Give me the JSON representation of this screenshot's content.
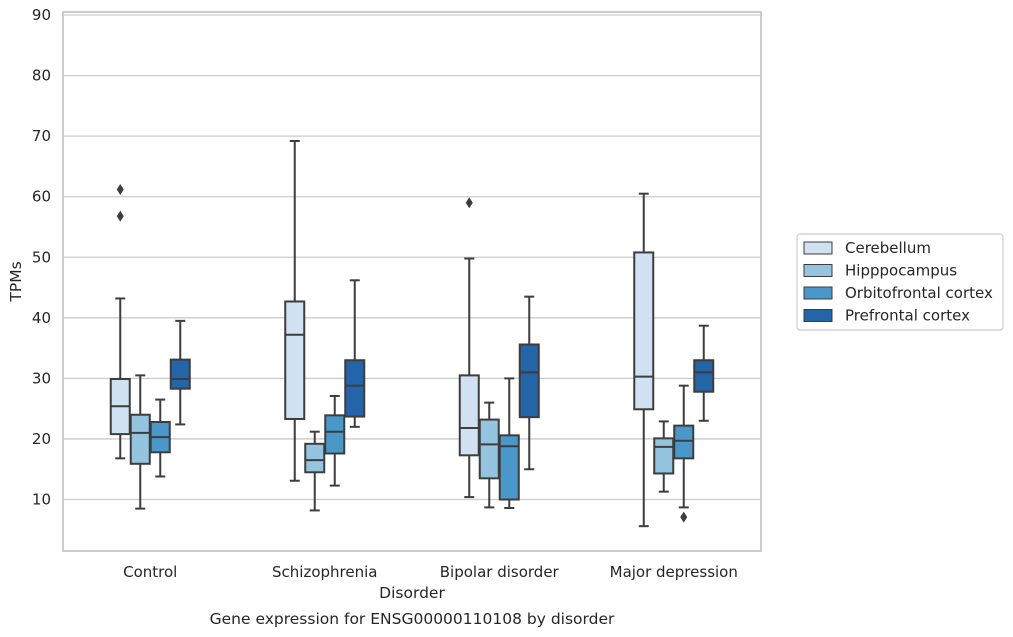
{
  "chart_data": {
    "type": "box",
    "caption": "Gene expression for ENSG00000110108 by disorder",
    "xlabel": "Disorder",
    "ylabel": "TPMs",
    "ylim": [
      1.5,
      90.5
    ],
    "yticks": [
      10,
      20,
      30,
      40,
      50,
      60,
      70,
      80,
      90
    ],
    "grid": "horizontal",
    "legend_position": "right",
    "categories": [
      "Control",
      "Schizophrenia",
      "Bipolar disorder",
      "Major depression"
    ],
    "series": [
      {
        "name": "Cerebellum",
        "color": "#d0e1f2",
        "boxes": [
          {
            "whislo": 16.8,
            "q1": 20.8,
            "med": 25.4,
            "q3": 29.9,
            "whishi": 43.2,
            "fliers": [
              56.8,
              61.2
            ]
          },
          {
            "whislo": 13.1,
            "q1": 23.3,
            "med": 37.2,
            "q3": 42.7,
            "whishi": 69.2,
            "fliers": []
          },
          {
            "whislo": 10.4,
            "q1": 17.3,
            "med": 21.8,
            "q3": 30.5,
            "whishi": 49.8,
            "fliers": [
              59.0
            ]
          },
          {
            "whislo": 5.6,
            "q1": 24.9,
            "med": 30.3,
            "q3": 50.8,
            "whishi": 60.5,
            "fliers": []
          }
        ]
      },
      {
        "name": "Hipppocampus",
        "color": "#94c4df",
        "boxes": [
          {
            "whislo": 8.5,
            "q1": 15.9,
            "med": 21.0,
            "q3": 24.0,
            "whishi": 30.5,
            "fliers": []
          },
          {
            "whislo": 8.2,
            "q1": 14.5,
            "med": 16.5,
            "q3": 19.2,
            "whishi": 21.2,
            "fliers": []
          },
          {
            "whislo": 8.7,
            "q1": 13.5,
            "med": 19.1,
            "q3": 23.2,
            "whishi": 26.0,
            "fliers": []
          },
          {
            "whislo": 11.3,
            "q1": 14.3,
            "med": 18.7,
            "q3": 20.1,
            "whishi": 22.9,
            "fliers": []
          }
        ]
      },
      {
        "name": "Orbitofrontal cortex",
        "color": "#4a98c9",
        "boxes": [
          {
            "whislo": 13.8,
            "q1": 17.8,
            "med": 20.3,
            "q3": 22.8,
            "whishi": 26.5,
            "fliers": []
          },
          {
            "whislo": 12.3,
            "q1": 17.6,
            "med": 21.2,
            "q3": 23.9,
            "whishi": 27.1,
            "fliers": []
          },
          {
            "whislo": 8.6,
            "q1": 10.0,
            "med": 18.8,
            "q3": 20.6,
            "whishi": 30.0,
            "fliers": []
          },
          {
            "whislo": 8.7,
            "q1": 16.8,
            "med": 19.7,
            "q3": 22.2,
            "whishi": 28.8,
            "fliers": [
              7.1
            ]
          }
        ]
      },
      {
        "name": "Prefrontal cortex",
        "color": "#2464a8",
        "boxes": [
          {
            "whislo": 22.4,
            "q1": 28.3,
            "med": 29.9,
            "q3": 33.1,
            "whishi": 39.5,
            "fliers": []
          },
          {
            "whislo": 22.0,
            "q1": 23.7,
            "med": 28.8,
            "q3": 33.0,
            "whishi": 46.2,
            "fliers": []
          },
          {
            "whislo": 15.0,
            "q1": 23.6,
            "med": 31.0,
            "q3": 35.6,
            "whishi": 43.5,
            "fliers": []
          },
          {
            "whislo": 23.0,
            "q1": 27.8,
            "med": 31.0,
            "q3": 33.0,
            "whishi": 38.7,
            "fliers": []
          }
        ]
      }
    ]
  },
  "colors": {
    "box_edge": "#3d3d3d",
    "grid": "#cccccc",
    "frame": "#cccccc"
  }
}
